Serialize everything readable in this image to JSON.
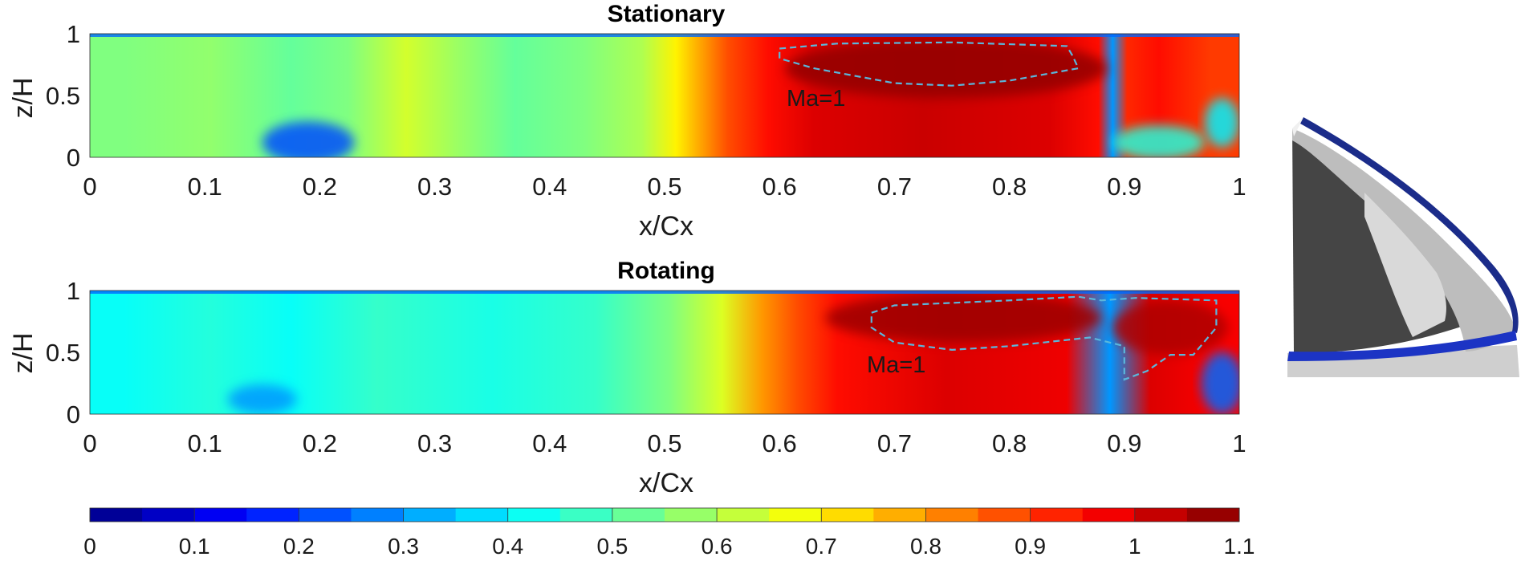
{
  "chart_data": [
    {
      "type": "heatmap",
      "title": "Stationary",
      "xlabel": "x/Cx",
      "ylabel": "z/H",
      "xlim": [
        0,
        1
      ],
      "ylim": [
        0,
        1
      ],
      "xticks": [
        "0",
        "0.1",
        "0.2",
        "0.3",
        "0.4",
        "0.5",
        "0.6",
        "0.7",
        "0.8",
        "0.9",
        "1"
      ],
      "yticks": [
        "0",
        "0.5",
        "1"
      ],
      "annotation": "Ma=1",
      "bands": [
        {
          "x0": 0.0,
          "x1": 0.06,
          "value": 0.55
        },
        {
          "x0": 0.06,
          "x1": 0.15,
          "value": 0.57
        },
        {
          "x0": 0.15,
          "x1": 0.2,
          "value": 0.52
        },
        {
          "x0": 0.2,
          "x1": 0.25,
          "value": 0.55
        },
        {
          "x0": 0.25,
          "x1": 0.3,
          "value": 0.64
        },
        {
          "x0": 0.3,
          "x1": 0.34,
          "value": 0.58
        },
        {
          "x0": 0.34,
          "x1": 0.4,
          "value": 0.52
        },
        {
          "x0": 0.4,
          "x1": 0.46,
          "value": 0.55
        },
        {
          "x0": 0.46,
          "x1": 0.5,
          "value": 0.6
        },
        {
          "x0": 0.5,
          "x1": 0.52,
          "value": 0.7
        },
        {
          "x0": 0.52,
          "x1": 0.54,
          "value": 0.78
        },
        {
          "x0": 0.54,
          "x1": 0.57,
          "value": 0.88
        },
        {
          "x0": 0.57,
          "x1": 0.61,
          "value": 0.95
        },
        {
          "x0": 0.61,
          "x1": 0.65,
          "value": 1.0
        },
        {
          "x0": 0.65,
          "x1": 0.8,
          "value": 1.02
        },
        {
          "x0": 0.8,
          "x1": 0.87,
          "value": 1.0
        },
        {
          "x0": 0.87,
          "x1": 0.885,
          "value": 0.95
        },
        {
          "x0": 0.885,
          "x1": 0.895,
          "value": 0.3
        },
        {
          "x0": 0.895,
          "x1": 0.91,
          "value": 0.92
        },
        {
          "x0": 0.91,
          "x1": 0.95,
          "value": 0.95
        },
        {
          "x0": 0.95,
          "x1": 1.0,
          "value": 0.9
        }
      ],
      "blobs": [
        {
          "x": 0.745,
          "z": 0.72,
          "rx": 0.14,
          "rz": 0.24,
          "value": 1.08
        },
        {
          "x": 0.19,
          "z": 0.12,
          "rx": 0.04,
          "rz": 0.17,
          "value": 0.22
        },
        {
          "x": 0.93,
          "z": 0.12,
          "rx": 0.04,
          "rz": 0.14,
          "value": 0.45
        },
        {
          "x": 0.985,
          "z": 0.28,
          "rx": 0.015,
          "rz": 0.2,
          "value": 0.4
        }
      ],
      "contour": [
        [
          0.6,
          0.88
        ],
        [
          0.65,
          0.92
        ],
        [
          0.75,
          0.93
        ],
        [
          0.85,
          0.9
        ],
        [
          0.855,
          0.82
        ],
        [
          0.86,
          0.72
        ],
        [
          0.8,
          0.62
        ],
        [
          0.75,
          0.58
        ],
        [
          0.7,
          0.6
        ],
        [
          0.63,
          0.72
        ],
        [
          0.6,
          0.8
        ],
        [
          0.6,
          0.88
        ]
      ]
    },
    {
      "type": "heatmap",
      "title": "Rotating",
      "xlabel": "x/Cx",
      "ylabel": "z/H",
      "xlim": [
        0,
        1
      ],
      "ylim": [
        0,
        1
      ],
      "xticks": [
        "0",
        "0.1",
        "0.2",
        "0.3",
        "0.4",
        "0.5",
        "0.6",
        "0.7",
        "0.8",
        "0.9",
        "1"
      ],
      "yticks": [
        "0",
        "0.5",
        "1"
      ],
      "annotation": "Ma=1",
      "bands": [
        {
          "x0": 0.0,
          "x1": 0.06,
          "value": 0.42
        },
        {
          "x0": 0.06,
          "x1": 0.15,
          "value": 0.45
        },
        {
          "x0": 0.15,
          "x1": 0.2,
          "value": 0.42
        },
        {
          "x0": 0.2,
          "x1": 0.3,
          "value": 0.47
        },
        {
          "x0": 0.3,
          "x1": 0.4,
          "value": 0.44
        },
        {
          "x0": 0.4,
          "x1": 0.48,
          "value": 0.47
        },
        {
          "x0": 0.48,
          "x1": 0.53,
          "value": 0.55
        },
        {
          "x0": 0.53,
          "x1": 0.57,
          "value": 0.65
        },
        {
          "x0": 0.57,
          "x1": 0.6,
          "value": 0.8
        },
        {
          "x0": 0.6,
          "x1": 0.63,
          "value": 0.88
        },
        {
          "x0": 0.63,
          "x1": 0.67,
          "value": 0.95
        },
        {
          "x0": 0.67,
          "x1": 0.82,
          "value": 1.0
        },
        {
          "x0": 0.82,
          "x1": 0.88,
          "value": 0.98
        },
        {
          "x0": 0.88,
          "x1": 0.895,
          "value": 0.3
        },
        {
          "x0": 0.895,
          "x1": 0.95,
          "value": 1.0
        },
        {
          "x0": 0.95,
          "x1": 1.0,
          "value": 0.97
        }
      ],
      "blobs": [
        {
          "x": 0.76,
          "z": 0.78,
          "rx": 0.12,
          "rz": 0.2,
          "value": 1.07
        },
        {
          "x": 0.94,
          "z": 0.7,
          "rx": 0.05,
          "rz": 0.22,
          "value": 1.05
        },
        {
          "x": 0.15,
          "z": 0.12,
          "rx": 0.03,
          "rz": 0.12,
          "value": 0.3
        },
        {
          "x": 0.985,
          "z": 0.25,
          "rx": 0.018,
          "rz": 0.25,
          "value": 0.25
        }
      ],
      "contour": [
        [
          0.68,
          0.82
        ],
        [
          0.7,
          0.88
        ],
        [
          0.8,
          0.92
        ],
        [
          0.86,
          0.95
        ],
        [
          0.88,
          0.92
        ],
        [
          0.91,
          0.94
        ],
        [
          0.98,
          0.92
        ],
        [
          0.98,
          0.7
        ],
        [
          0.96,
          0.48
        ],
        [
          0.94,
          0.48
        ],
        [
          0.92,
          0.35
        ],
        [
          0.9,
          0.28
        ],
        [
          0.9,
          0.55
        ],
        [
          0.87,
          0.62
        ],
        [
          0.8,
          0.55
        ],
        [
          0.75,
          0.52
        ],
        [
          0.7,
          0.58
        ],
        [
          0.68,
          0.7
        ],
        [
          0.68,
          0.82
        ]
      ]
    }
  ],
  "colorbar": {
    "colormap": "jet",
    "min": 0,
    "max": 1.1,
    "ticks": [
      "0",
      "0.1",
      "0.2",
      "0.3",
      "0.4",
      "0.5",
      "0.6",
      "0.7",
      "0.8",
      "0.9",
      "1",
      "1.1"
    ],
    "levels": 22
  },
  "contour_color": "#5ab7dc",
  "inset": {
    "description_colors": {
      "hub": "#454545",
      "blade": "#bdbdbd",
      "tip_band": "#1b2c8a",
      "base_band": "#1c34c4"
    }
  }
}
